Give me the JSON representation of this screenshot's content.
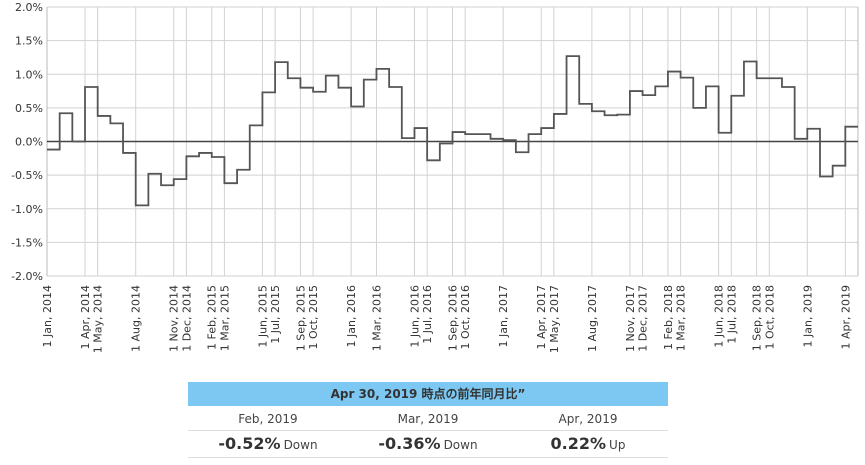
{
  "chart_data": {
    "type": "line",
    "step": true,
    "ylim": [
      -2.0,
      2.0
    ],
    "y_ticks": [
      "2.0%",
      "1.5%",
      "1.0%",
      "0.5%",
      "0.0%",
      "-0.5%",
      "-1.0%",
      "-1.5%",
      "-2.0%"
    ],
    "y_tick_values": [
      2.0,
      1.5,
      1.0,
      0.5,
      0.0,
      -0.5,
      -1.0,
      -1.5,
      -2.0
    ],
    "x_start": "2014-01",
    "x_end": "2019-05",
    "grid": true,
    "x_tick_labels": [
      {
        "m": "2014-01",
        "label": "1 Jan, 2014"
      },
      {
        "m": "2014-04",
        "label": "1 Apr, 2014"
      },
      {
        "m": "2014-05",
        "label": "1 May, 2014"
      },
      {
        "m": "2014-08",
        "label": "1 Aug, 2014"
      },
      {
        "m": "2014-11",
        "label": "1 Nov, 2014"
      },
      {
        "m": "2014-12",
        "label": "1 Dec, 2014"
      },
      {
        "m": "2015-02",
        "label": "1 Feb, 2015"
      },
      {
        "m": "2015-03",
        "label": "1 Mar, 2015"
      },
      {
        "m": "2015-06",
        "label": "1 Jun, 2015"
      },
      {
        "m": "2015-07",
        "label": "1 Jul, 2015"
      },
      {
        "m": "2015-09",
        "label": "1 Sep, 2015"
      },
      {
        "m": "2015-10",
        "label": "1 Oct, 2015"
      },
      {
        "m": "2016-01",
        "label": "1 Jan, 2016"
      },
      {
        "m": "2016-03",
        "label": "1 Mar, 2016"
      },
      {
        "m": "2016-06",
        "label": "1 Jun, 2016"
      },
      {
        "m": "2016-07",
        "label": "1 Jul, 2016"
      },
      {
        "m": "2016-09",
        "label": "1 Sep, 2016"
      },
      {
        "m": "2016-10",
        "label": "1 Oct, 2016"
      },
      {
        "m": "2017-01",
        "label": "1 Jan, 2017"
      },
      {
        "m": "2017-04",
        "label": "1 Apr, 2017"
      },
      {
        "m": "2017-05",
        "label": "1 May, 2017"
      },
      {
        "m": "2017-08",
        "label": "1 Aug, 2017"
      },
      {
        "m": "2017-11",
        "label": "1 Nov, 2017"
      },
      {
        "m": "2017-12",
        "label": "1 Dec, 2017"
      },
      {
        "m": "2018-02",
        "label": "1 Feb, 2018"
      },
      {
        "m": "2018-03",
        "label": "1 Mar, 2018"
      },
      {
        "m": "2018-06",
        "label": "1 Jun, 2018"
      },
      {
        "m": "2018-07",
        "label": "1 Jul, 2018"
      },
      {
        "m": "2018-09",
        "label": "1 Sep, 2018"
      },
      {
        "m": "2018-10",
        "label": "1 Oct, 2018"
      },
      {
        "m": "2019-01",
        "label": "1 Jan, 2019"
      },
      {
        "m": "2019-04",
        "label": "1 Apr, 2019"
      }
    ],
    "series": [
      {
        "color": "#555555",
        "points": [
          [
            "2014-01",
            -0.12
          ],
          [
            "2014-02",
            0.42
          ],
          [
            "2014-03",
            0.0
          ],
          [
            "2014-04",
            0.81
          ],
          [
            "2014-05",
            0.38
          ],
          [
            "2014-06",
            0.27
          ],
          [
            "2014-07",
            -0.17
          ],
          [
            "2014-08",
            -0.95
          ],
          [
            "2014-09",
            -0.48
          ],
          [
            "2014-10",
            -0.65
          ],
          [
            "2014-11",
            -0.56
          ],
          [
            "2014-12",
            -0.22
          ],
          [
            "2015-01",
            -0.17
          ],
          [
            "2015-02",
            -0.23
          ],
          [
            "2015-03",
            -0.62
          ],
          [
            "2015-04",
            -0.42
          ],
          [
            "2015-05",
            0.24
          ],
          [
            "2015-06",
            0.73
          ],
          [
            "2015-07",
            1.18
          ],
          [
            "2015-08",
            0.94
          ],
          [
            "2015-09",
            0.8
          ],
          [
            "2015-10",
            0.74
          ],
          [
            "2015-11",
            0.98
          ],
          [
            "2015-12",
            0.8
          ],
          [
            "2016-01",
            0.52
          ],
          [
            "2016-02",
            0.92
          ],
          [
            "2016-03",
            1.08
          ],
          [
            "2016-04",
            0.81
          ],
          [
            "2016-05",
            0.05
          ],
          [
            "2016-06",
            0.2
          ],
          [
            "2016-07",
            -0.28
          ],
          [
            "2016-08",
            -0.03
          ],
          [
            "2016-09",
            0.14
          ],
          [
            "2016-10",
            0.11
          ],
          [
            "2016-11",
            0.11
          ],
          [
            "2016-12",
            0.04
          ],
          [
            "2017-01",
            0.02
          ],
          [
            "2017-02",
            -0.16
          ],
          [
            "2017-03",
            0.11
          ],
          [
            "2017-04",
            0.2
          ],
          [
            "2017-05",
            0.41
          ],
          [
            "2017-06",
            1.27
          ],
          [
            "2017-07",
            0.56
          ],
          [
            "2017-08",
            0.45
          ],
          [
            "2017-09",
            0.39
          ],
          [
            "2017-10",
            0.4
          ],
          [
            "2017-11",
            0.75
          ],
          [
            "2017-12",
            0.69
          ],
          [
            "2018-01",
            0.82
          ],
          [
            "2018-02",
            1.04
          ],
          [
            "2018-03",
            0.95
          ],
          [
            "2018-04",
            0.5
          ],
          [
            "2018-05",
            0.82
          ],
          [
            "2018-06",
            0.13
          ],
          [
            "2018-07",
            0.68
          ],
          [
            "2018-08",
            1.19
          ],
          [
            "2018-09",
            0.94
          ],
          [
            "2018-10",
            0.94
          ],
          [
            "2018-11",
            0.81
          ],
          [
            "2018-12",
            0.04
          ],
          [
            "2019-01",
            0.19
          ],
          [
            "2019-02",
            -0.52
          ],
          [
            "2019-03",
            -0.36
          ],
          [
            "2019-04",
            0.22
          ]
        ]
      }
    ]
  },
  "summary": {
    "title": "Apr 30, 2019 時点の前年同月比”",
    "months": [
      "Feb, 2019",
      "Mar, 2019",
      "Apr, 2019"
    ],
    "values": [
      "-0.52%",
      "-0.36%",
      "0.22%"
    ],
    "directions": [
      "Down",
      "Down",
      "Up"
    ]
  }
}
